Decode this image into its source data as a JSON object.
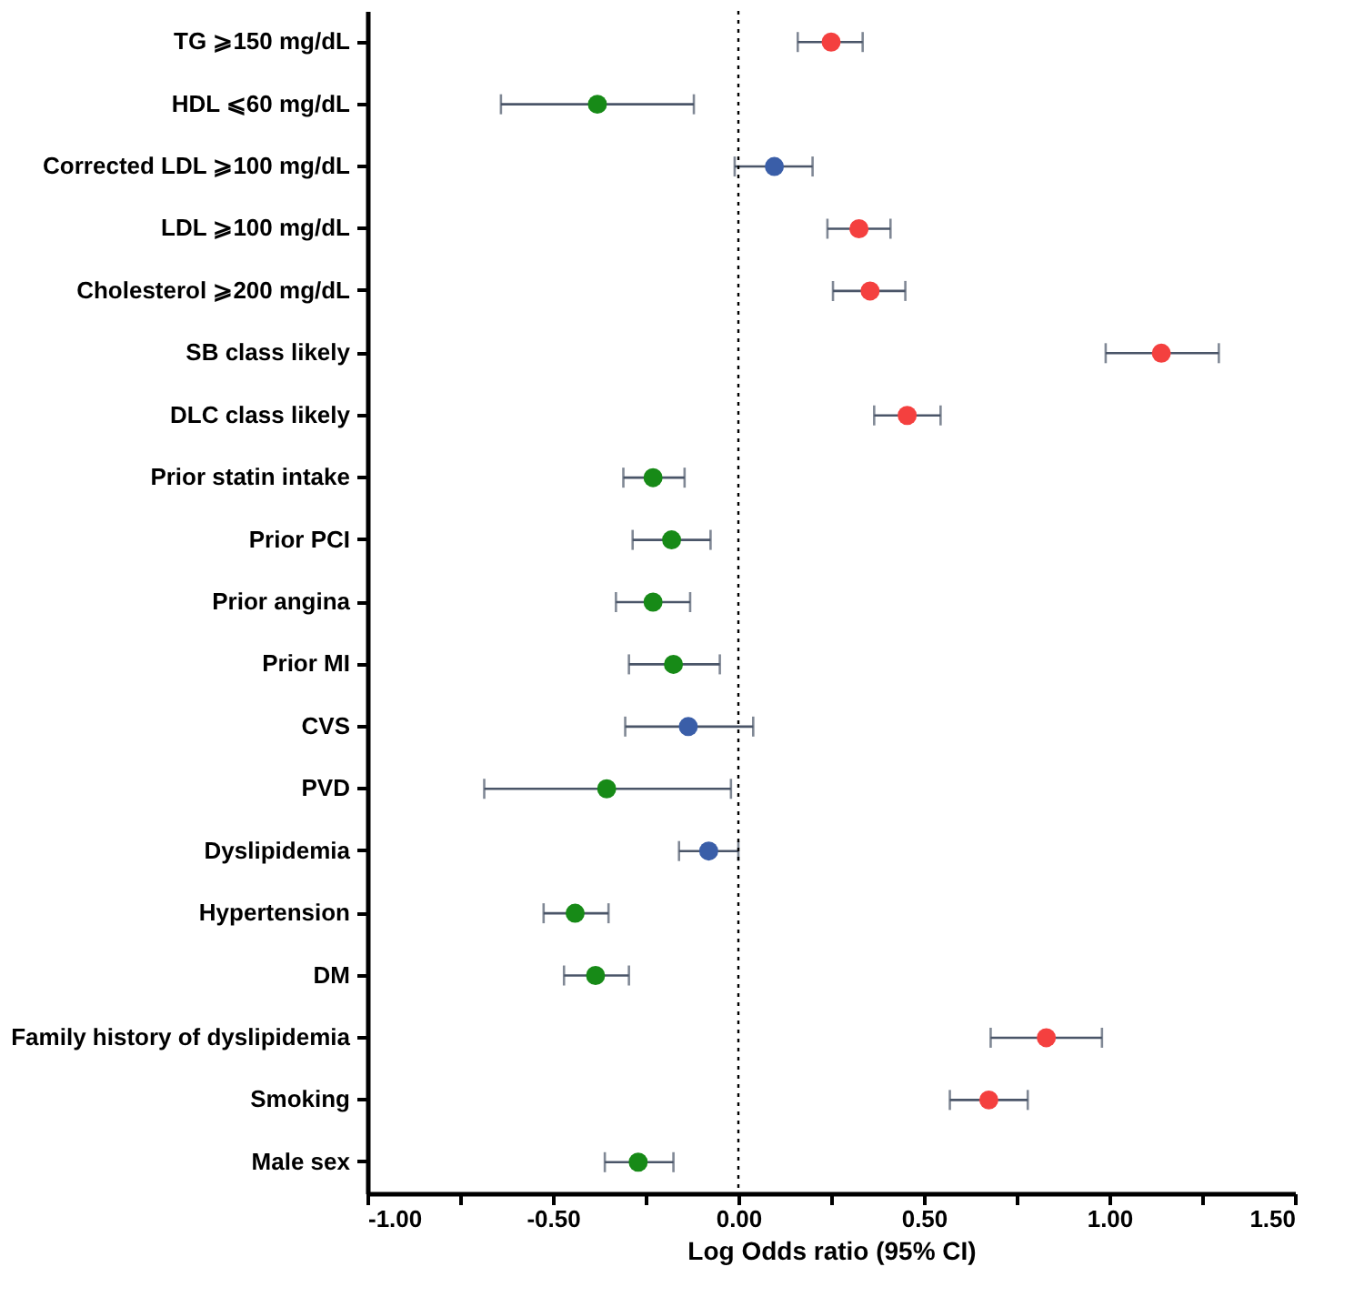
{
  "chart_data": {
    "type": "scatter",
    "orientation": "horizontal",
    "xlabel": "Log Odds ratio (95% CI)",
    "categories": [
      "TG ⩾150 mg/dL",
      "HDL ⩽60 mg/dL",
      "Corrected LDL ⩾100 mg/dL",
      "LDL ⩾100 mg/dL",
      "Cholesterol ⩾200 mg/dL",
      "SB class likely",
      "DLC class likely",
      "Prior statin intake",
      "Prior PCI",
      "Prior angina",
      "Prior MI",
      "CVS",
      "PVD",
      "Dyslipidemia",
      "Hypertension",
      "DM",
      "Family history of dyslipidemia",
      "Smoking",
      "Male sex"
    ],
    "series": [
      {
        "color": "#f4403f",
        "values": [
          0.25,
          null,
          null,
          0.325,
          0.355,
          1.14,
          0.455,
          null,
          null,
          null,
          null,
          null,
          null,
          null,
          null,
          null,
          0.83,
          0.675,
          null
        ],
        "errors": [
          [
            0.16,
            0.335
          ],
          null,
          null,
          [
            0.24,
            0.41
          ],
          [
            0.255,
            0.45
          ],
          [
            0.99,
            1.295
          ],
          [
            0.366,
            0.545
          ],
          null,
          null,
          null,
          null,
          null,
          null,
          null,
          null,
          null,
          [
            0.68,
            0.98
          ],
          [
            0.57,
            0.78
          ],
          null
        ]
      },
      {
        "color": "#178a17",
        "values": [
          null,
          -0.38,
          null,
          null,
          null,
          null,
          null,
          -0.23,
          -0.18,
          -0.23,
          -0.175,
          null,
          -0.355,
          null,
          -0.44,
          -0.385,
          null,
          null,
          -0.27
        ],
        "errors": [
          null,
          [
            -0.64,
            -0.12
          ],
          null,
          null,
          null,
          null,
          null,
          [
            -0.31,
            -0.145
          ],
          [
            -0.285,
            -0.075
          ],
          [
            -0.33,
            -0.13
          ],
          [
            -0.295,
            -0.05
          ],
          null,
          [
            -0.685,
            -0.02
          ],
          null,
          [
            -0.525,
            -0.35
          ],
          [
            -0.47,
            -0.295
          ],
          null,
          null,
          [
            -0.36,
            -0.175
          ]
        ]
      },
      {
        "color": "#3a5ea8",
        "values": [
          null,
          null,
          0.097,
          null,
          null,
          null,
          null,
          null,
          null,
          null,
          null,
          -0.135,
          null,
          -0.08,
          null,
          null,
          null,
          null,
          null
        ],
        "errors": [
          null,
          null,
          [
            -0.01,
            0.2
          ],
          null,
          null,
          null,
          null,
          null,
          null,
          null,
          null,
          [
            -0.305,
            0.04
          ],
          null,
          [
            -0.16,
            0.0
          ],
          null,
          null,
          null,
          null,
          null
        ]
      }
    ],
    "xlim": [
      -1.0,
      1.5
    ],
    "xticks": [
      {
        "value": -1.0,
        "label": "-1.00"
      },
      {
        "value": -0.75,
        "label": null
      },
      {
        "value": -0.5,
        "label": "-0.50"
      },
      {
        "value": -0.25,
        "label": null
      },
      {
        "value": 0.0,
        "label": "0.00"
      },
      {
        "value": 0.25,
        "label": null
      },
      {
        "value": 0.5,
        "label": "0.50"
      },
      {
        "value": 0.75,
        "label": null
      },
      {
        "value": 1.0,
        "label": "1.00"
      },
      {
        "value": 1.25,
        "label": null
      },
      {
        "value": 1.5,
        "label": "1.50"
      }
    ],
    "ref_lines": [
      {
        "axis": "x",
        "value": 0.0,
        "color": "#000000",
        "line_style": "dotted"
      }
    ],
    "grid": false,
    "legend": false,
    "marker": "circle"
  }
}
